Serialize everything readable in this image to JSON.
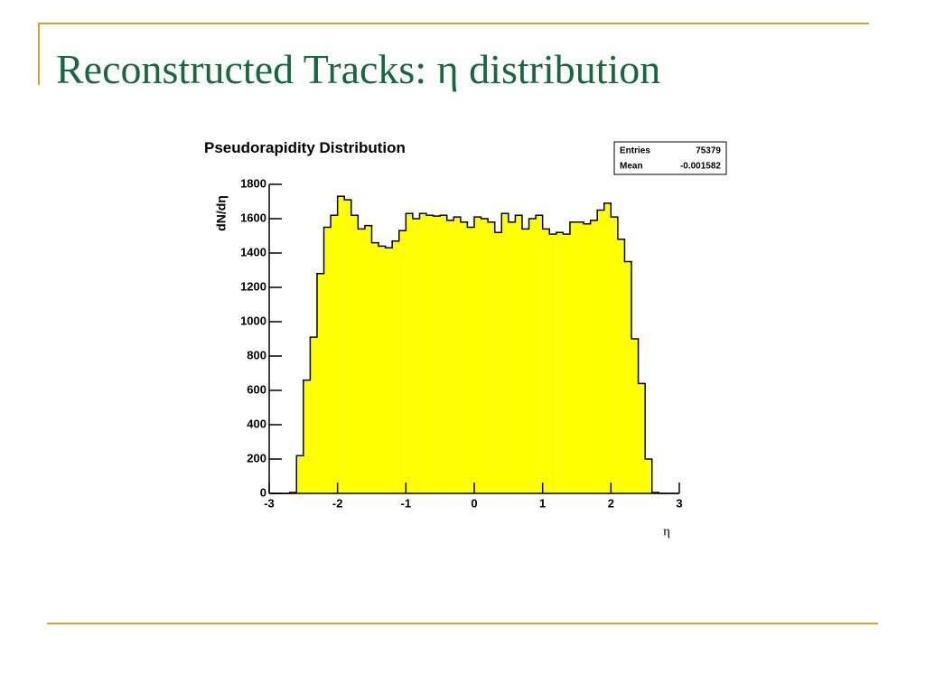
{
  "slide_title": "Reconstructed Tracks: η distribution",
  "chart_data": {
    "type": "histogram",
    "title": "Pseudorapidity Distribution",
    "y_label": "dN/dη",
    "x_label": "η",
    "stats": {
      "entries_label": "Entries",
      "entries": 75379,
      "mean_label": "Mean",
      "mean": -0.001582
    },
    "color": "#ffff00",
    "bins": [
      -3,
      -2.9,
      -2.8,
      -2.7,
      -2.6,
      -2.5,
      -2.4,
      -2.3,
      -2.2,
      -2.1,
      -2,
      -1.9,
      -1.8,
      -1.7,
      -1.6,
      -1.5,
      -1.4,
      -1.3,
      -1.2,
      -1.1,
      -1,
      -0.9,
      -0.8,
      -0.7,
      -0.6,
      -0.5,
      -0.4,
      -0.3,
      -0.2,
      -0.1,
      0,
      0.1,
      0.2,
      0.3,
      0.4,
      0.5,
      0.6,
      0.7,
      0.8,
      0.9,
      1,
      1.1,
      1.2,
      1.3,
      1.4,
      1.5,
      1.6,
      1.7,
      1.8,
      1.9,
      2,
      2.1,
      2.2,
      2.3,
      2.4,
      2.5,
      2.6,
      2.7,
      2.8,
      2.9,
      3
    ],
    "values": [
      0,
      0,
      0,
      5,
      220,
      660,
      910,
      1280,
      1550,
      1620,
      1730,
      1710,
      1620,
      1540,
      1560,
      1460,
      1440,
      1430,
      1470,
      1530,
      1630,
      1600,
      1630,
      1620,
      1615,
      1620,
      1590,
      1610,
      1580,
      1550,
      1610,
      1600,
      1580,
      1520,
      1630,
      1580,
      1620,
      1540,
      1600,
      1620,
      1540,
      1510,
      1520,
      1510,
      1580,
      1580,
      1570,
      1590,
      1650,
      1690,
      1610,
      1480,
      1350,
      900,
      640,
      200,
      5,
      0,
      0,
      0
    ],
    "xlim": [
      -3,
      3
    ],
    "xticks": [
      -3,
      -2,
      -1,
      0,
      1,
      2,
      3
    ],
    "ylim": [
      0,
      1800
    ],
    "yticks": [
      0,
      200,
      400,
      600,
      800,
      1000,
      1200,
      1400,
      1600,
      1800
    ]
  }
}
